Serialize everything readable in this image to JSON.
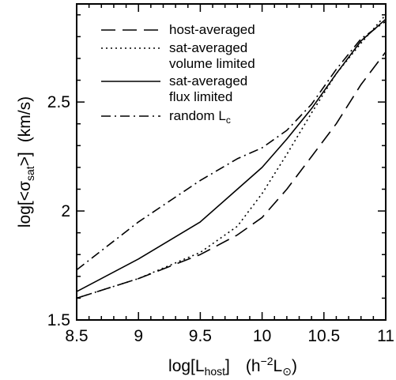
{
  "chart_data": {
    "type": "line",
    "xlabel": {
      "main": "log[L",
      "sub": "host",
      "close": "]",
      "unit_open": "(h",
      "unit_sup": "−2",
      "unit_L": "L",
      "unit_sun": "⊙",
      "unit_close": ")"
    },
    "ylabel": {
      "main": "log[<σ",
      "sub": "sat",
      "close": ">]",
      "unit": "(km/s)"
    },
    "xlim": [
      8.5,
      11
    ],
    "ylim": [
      1.5,
      2.95
    ],
    "xticks": [
      8.5,
      9,
      9.5,
      10,
      10.5,
      11
    ],
    "xtick_labels": [
      "8.5",
      "9",
      "9.5",
      "10",
      "10.5",
      "11"
    ],
    "yticks": [
      1.5,
      2,
      2.5
    ],
    "ytick_labels": [
      "1.5",
      "2",
      "2.5"
    ],
    "legend_position": "top-left",
    "series": [
      {
        "name": "host-averaged",
        "dash": "long-dash",
        "x": [
          8.5,
          9.0,
          9.5,
          9.8,
          10.0,
          10.2,
          10.4,
          10.6,
          10.8,
          11.0
        ],
        "y": [
          1.6,
          1.69,
          1.8,
          1.89,
          1.97,
          2.1,
          2.25,
          2.4,
          2.58,
          2.73
        ]
      },
      {
        "name": "sat-averaged",
        "name2": "volume limited",
        "dash": "dotted",
        "x": [
          8.5,
          9.0,
          9.5,
          9.8,
          10.0,
          10.2,
          10.4,
          10.6,
          10.8,
          11.0
        ],
        "y": [
          1.6,
          1.69,
          1.81,
          1.93,
          2.08,
          2.26,
          2.45,
          2.63,
          2.77,
          2.9
        ]
      },
      {
        "name": "sat-averaged",
        "name2": "flux limited",
        "dash": "solid",
        "x": [
          8.5,
          9.0,
          9.5,
          9.8,
          10.0,
          10.2,
          10.4,
          10.6,
          10.8,
          11.0
        ],
        "y": [
          1.63,
          1.78,
          1.95,
          2.1,
          2.2,
          2.33,
          2.47,
          2.63,
          2.78,
          2.88
        ]
      },
      {
        "name": "random L",
        "name_sub": "c",
        "dash": "dash-dot",
        "x": [
          8.5,
          9.0,
          9.5,
          9.8,
          10.0,
          10.2,
          10.4,
          10.6,
          10.8,
          11.0
        ],
        "y": [
          1.73,
          1.95,
          2.14,
          2.24,
          2.29,
          2.37,
          2.49,
          2.65,
          2.79,
          2.87
        ]
      }
    ]
  }
}
